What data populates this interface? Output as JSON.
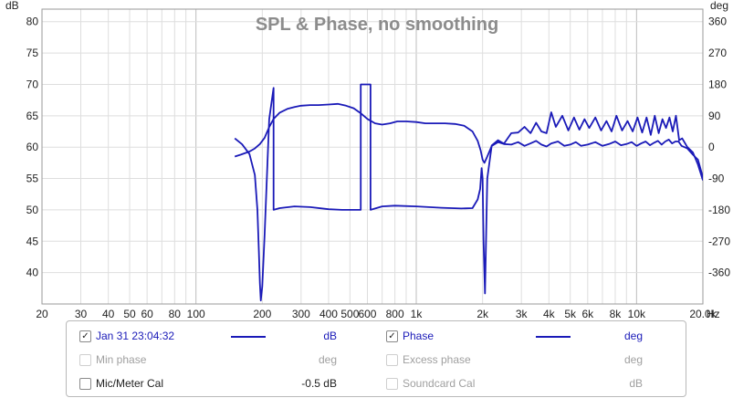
{
  "chart_data": {
    "type": "line",
    "title": "SPL & Phase, no smoothing",
    "left_axis": {
      "unit": "dB",
      "ylim": [
        35,
        82
      ],
      "ticks": [
        40,
        45,
        50,
        55,
        60,
        65,
        70,
        75,
        80
      ],
      "tick_labels": [
        "40",
        "45",
        "50",
        "55",
        "60",
        "65",
        "70",
        "75",
        "80"
      ]
    },
    "right_axis": {
      "unit": "deg",
      "ylim": [
        -450,
        396
      ],
      "ticks": [
        -360,
        -270,
        -180,
        -90,
        0,
        90,
        180,
        270,
        360
      ],
      "tick_labels": [
        "-360",
        "-270",
        "-180",
        "-90",
        "0",
        "90",
        "180",
        "270",
        "360"
      ]
    },
    "x_axis": {
      "unit": "Hz",
      "scale": "log",
      "xlim": [
        20,
        20000
      ],
      "labeled_ticks": [
        20,
        30,
        40,
        50,
        60,
        80,
        100,
        200,
        300,
        400,
        500,
        600,
        800,
        1000,
        2000,
        3000,
        4000,
        5000,
        6000,
        8000,
        10000,
        20000
      ],
      "tick_labels": [
        "20",
        "30",
        "40",
        "50",
        "60",
        "80",
        "100",
        "200",
        "300",
        "400",
        "500",
        "600",
        "800",
        "1k",
        "2k",
        "3k",
        "4k",
        "5k",
        "6k",
        "8k",
        "10k",
        "20.0k"
      ]
    },
    "grid": true,
    "series": [
      {
        "name": "Jan 31 23:04:32",
        "unit": "dB",
        "color": "#1a1ab8",
        "x": [
          150,
          160,
          175,
          185,
          195,
          205,
          215,
          225,
          240,
          260,
          280,
          300,
          330,
          360,
          400,
          440,
          480,
          520,
          560,
          600,
          650,
          700,
          760,
          820,
          900,
          1000,
          1100,
          1200,
          1350,
          1500,
          1650,
          1800,
          1900,
          1960,
          2000,
          2040,
          2100,
          2200,
          2350,
          2500,
          2700,
          2900,
          3100,
          3300,
          3500,
          3700,
          3900,
          4100,
          4400,
          4700,
          5000,
          5300,
          5600,
          6000,
          6500,
          7000,
          7500,
          8000,
          8500,
          9000,
          9500,
          10000,
          10500,
          11000,
          11500,
          12000,
          12500,
          13000,
          13500,
          14000,
          14500,
          15000,
          15500,
          16000,
          17000,
          18000,
          19000,
          20000
        ],
        "y": [
          58.5,
          58.8,
          59.3,
          59.8,
          60.5,
          61.5,
          63.2,
          64.5,
          65.5,
          66.1,
          66.4,
          66.6,
          66.7,
          66.7,
          66.8,
          66.9,
          66.6,
          66.2,
          65.4,
          64.5,
          63.8,
          63.6,
          63.8,
          64.1,
          64.1,
          64.0,
          63.8,
          63.8,
          63.8,
          63.7,
          63.4,
          62.5,
          61.0,
          59.5,
          58.0,
          57.5,
          58.5,
          60.2,
          60.8,
          60.5,
          60.4,
          60.8,
          60.2,
          60.6,
          61.0,
          60.4,
          60.1,
          60.6,
          60.9,
          60.2,
          60.4,
          60.8,
          60.2,
          60.4,
          60.8,
          60.2,
          60.5,
          60.9,
          60.3,
          60.5,
          60.8,
          60.2,
          60.6,
          60.9,
          60.3,
          60.7,
          61.0,
          60.4,
          60.9,
          61.2,
          60.6,
          60.9,
          60.9,
          60.2,
          59.8,
          58.8,
          58.0,
          55.2
        ]
      },
      {
        "name": "Phase",
        "unit": "deg",
        "color": "#1a1ab8",
        "x": [
          150,
          162,
          175,
          185,
          190,
          193,
          195,
          197,
          200,
          205,
          215,
          225,
          225,
          240,
          280,
          330,
          400,
          460,
          520,
          560,
          560,
          620,
          620,
          700,
          800,
          1000,
          1300,
          1600,
          1800,
          1900,
          1950,
          1980,
          2000,
          2020,
          2050,
          2100,
          2200,
          2350,
          2500,
          2700,
          2900,
          3100,
          3300,
          3500,
          3700,
          3900,
          4100,
          4300,
          4600,
          4900,
          5200,
          5500,
          5800,
          6100,
          6500,
          6900,
          7300,
          7700,
          8100,
          8600,
          9100,
          9600,
          10100,
          10600,
          11100,
          11600,
          12100,
          12600,
          13100,
          13600,
          14100,
          14600,
          15100,
          15600,
          16100,
          17000,
          18000,
          19000,
          20000
        ],
        "y": [
          25,
          8,
          -20,
          -80,
          -180,
          -300,
          -390,
          -440,
          -400,
          -250,
          80,
          170,
          -180,
          -175,
          -170,
          -172,
          -178,
          -180,
          -180,
          -180,
          180,
          180,
          -180,
          -170,
          -168,
          -170,
          -174,
          -176,
          -175,
          -150,
          -120,
          -60,
          -90,
          -270,
          -420,
          -90,
          5,
          20,
          10,
          40,
          42,
          58,
          40,
          70,
          45,
          40,
          100,
          58,
          90,
          48,
          85,
          50,
          80,
          55,
          85,
          48,
          75,
          45,
          90,
          48,
          75,
          45,
          85,
          42,
          85,
          35,
          90,
          40,
          80,
          55,
          85,
          45,
          90,
          20,
          25,
          0,
          -15,
          -50,
          -95
        ]
      }
    ]
  },
  "legend": {
    "rows": [
      {
        "left": {
          "label": "Jan 31 23:04:32",
          "checked": true,
          "state": "blue",
          "swatch": true,
          "unit": "dB"
        },
        "right": {
          "label": "Phase",
          "checked": true,
          "state": "blue",
          "swatch": true,
          "unit": "deg"
        }
      },
      {
        "left": {
          "label": "Min phase",
          "checked": false,
          "state": "dim",
          "swatch": false,
          "unit": "deg"
        },
        "right": {
          "label": "Excess phase",
          "checked": false,
          "state": "dim",
          "swatch": false,
          "unit": "deg"
        }
      },
      {
        "left": {
          "label": "Mic/Meter Cal",
          "checked": false,
          "state": "dark",
          "swatch": false,
          "unit": "-0.5 dB"
        },
        "right": {
          "label": "Soundcard Cal",
          "checked": false,
          "state": "dim",
          "swatch": false,
          "unit": "dB"
        }
      }
    ]
  },
  "colors": {
    "trace": "#1a1ab8",
    "grid_major": "#bdbdbd",
    "grid_minor": "#dedede",
    "title": "#8c8c8c"
  }
}
